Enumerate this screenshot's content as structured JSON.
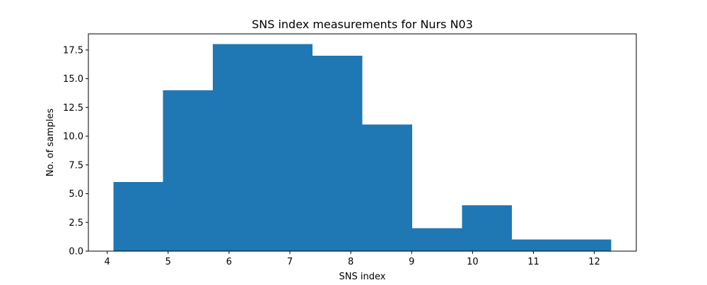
{
  "chart_data": {
    "type": "bar",
    "title": "SNS index measurements for Nurs N03",
    "xlabel": "SNS index",
    "ylabel": "No. of samples",
    "bins": [
      {
        "x0": 4.1,
        "x1": 4.918,
        "count": 6
      },
      {
        "x0": 4.918,
        "x1": 5.736,
        "count": 14
      },
      {
        "x0": 5.736,
        "x1": 6.554,
        "count": 18
      },
      {
        "x0": 6.554,
        "x1": 7.372,
        "count": 18
      },
      {
        "x0": 7.372,
        "x1": 8.19,
        "count": 17
      },
      {
        "x0": 8.19,
        "x1": 9.008,
        "count": 11
      },
      {
        "x0": 9.008,
        "x1": 9.826,
        "count": 2
      },
      {
        "x0": 9.826,
        "x1": 10.644,
        "count": 4
      },
      {
        "x0": 10.644,
        "x1": 11.462,
        "count": 1
      },
      {
        "x0": 11.462,
        "x1": 12.28,
        "count": 1
      }
    ],
    "xlim": [
      3.69,
      12.69
    ],
    "ylim": [
      0,
      18.9
    ],
    "xticks": [
      4,
      5,
      6,
      7,
      8,
      9,
      10,
      11,
      12
    ],
    "xtick_labels": [
      "4",
      "5",
      "6",
      "7",
      "8",
      "9",
      "10",
      "11",
      "12"
    ],
    "yticks": [
      0,
      2.5,
      5,
      7.5,
      10,
      12.5,
      15,
      17.5
    ],
    "ytick_labels": [
      "0.0",
      "2.5",
      "5.0",
      "7.5",
      "10.0",
      "12.5",
      "15.0",
      "17.5"
    ],
    "bar_color": "#1f77b4",
    "grid": false,
    "legend": false
  }
}
